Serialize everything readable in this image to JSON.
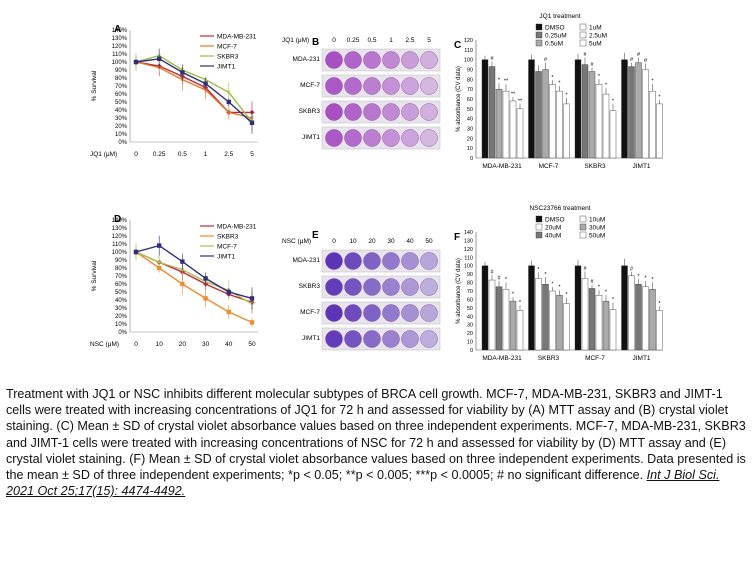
{
  "figure": {
    "panel_letters": [
      "A",
      "B",
      "C",
      "D",
      "E",
      "F"
    ],
    "jq1_xlabel": "JQ1 (μM)",
    "nsc_xlabel": "NSC (μM)",
    "jq1_plate_label": "JQ1 (μM)",
    "nsc_plate_label": "NSC (μM)",
    "jq1_conc": [
      "0",
      "0.25",
      "0.5",
      "1",
      "2.5",
      "5"
    ],
    "nsc_conc": [
      "0",
      "10",
      "20",
      "30",
      "40",
      "50"
    ],
    "plate_rows_b": [
      "MDA-231",
      "MCF-7",
      "SKBR3",
      "JIMT1"
    ],
    "plate_rows_e": [
      "MDA-231",
      "SKBR3",
      "MCF-7",
      "JIMT1"
    ],
    "colors": {
      "mda": "#c0283b",
      "mcf": "#e07b28",
      "skbr": "#9abf3a",
      "jimt": "#2f2e7a",
      "skbr_d": "#f08c2c",
      "mcf_d": "#a9c24d",
      "violet": "#a84fc4",
      "violet_e": "#5b34b8"
    }
  },
  "chart_data": [
    {
      "type": "line",
      "panel": "A",
      "ylabel": "% Survival",
      "xlabel": "JQ1 (μM)",
      "categories": [
        "0",
        "0.25",
        "0.5",
        "1",
        "2.5",
        "5"
      ],
      "yticks": [
        "0%",
        "10%",
        "20%",
        "30%",
        "40%",
        "50%",
        "60%",
        "70%",
        "80%",
        "90%",
        "100%",
        "110%",
        "120%",
        "130%",
        "140%"
      ],
      "ylim": [
        0,
        140
      ],
      "series": [
        {
          "name": "MDA-MB-231",
          "values": [
            100,
            95,
            82,
            68,
            37,
            37
          ]
        },
        {
          "name": "MCF-7",
          "values": [
            100,
            93,
            78,
            65,
            37,
            30
          ]
        },
        {
          "name": "SKBR3",
          "values": [
            100,
            108,
            90,
            78,
            62,
            25
          ]
        },
        {
          "name": "JIMT1",
          "values": [
            100,
            104,
            87,
            73,
            50,
            24
          ]
        }
      ]
    },
    {
      "type": "line",
      "panel": "D",
      "ylabel": "% Survival",
      "xlabel": "NSC (μM)",
      "categories": [
        "0",
        "10",
        "20",
        "30",
        "40",
        "50"
      ],
      "yticks": [
        "0%",
        "10%",
        "20%",
        "30%",
        "40%",
        "50%",
        "60%",
        "70%",
        "80%",
        "90%",
        "100%",
        "110%",
        "120%",
        "130%",
        "140%"
      ],
      "ylim": [
        0,
        140
      ],
      "series": [
        {
          "name": "MDA-MB-231",
          "values": [
            100,
            87,
            75,
            60,
            47,
            37
          ]
        },
        {
          "name": "SKBR3",
          "values": [
            100,
            80,
            60,
            42,
            25,
            12
          ]
        },
        {
          "name": "MCF-7",
          "values": [
            100,
            87,
            78,
            63,
            52,
            35
          ]
        },
        {
          "name": "JIMT1",
          "values": [
            100,
            108,
            88,
            67,
            50,
            42
          ]
        }
      ]
    },
    {
      "type": "bar",
      "panel": "C",
      "title": "JQ1 treatment",
      "ylabel": "% absorbance (CV data)",
      "categories": [
        "MDA-MB-231",
        "MCF-7",
        "SKBR3",
        "JIMT1"
      ],
      "yticks": [
        "0",
        "10",
        "20",
        "30",
        "40",
        "50",
        "60",
        "70",
        "80",
        "90",
        "100",
        "110",
        "120"
      ],
      "ylim": [
        0,
        120
      ],
      "legend": [
        "DMSO",
        "0.25uM",
        "0.5uM",
        "1uM",
        "2.5uM",
        "5uM"
      ],
      "series": [
        {
          "name": "DMSO",
          "values": [
            100,
            100,
            100,
            100
          ]
        },
        {
          "name": "0.25uM",
          "values": [
            93,
            88,
            95,
            93
          ]
        },
        {
          "name": "0.5uM",
          "values": [
            70,
            90,
            88,
            97
          ]
        },
        {
          "name": "1uM",
          "values": [
            68,
            75,
            75,
            90
          ]
        },
        {
          "name": "2.5uM",
          "values": [
            58,
            68,
            65,
            68
          ]
        },
        {
          "name": "5uM",
          "values": [
            50,
            55,
            48,
            55
          ]
        }
      ],
      "annotations": [
        [
          "",
          "#",
          "*",
          "**",
          "**",
          "**"
        ],
        [
          "",
          "",
          "#",
          "*",
          "*",
          "*"
        ],
        [
          "",
          "#",
          "#",
          "*",
          "*",
          "*"
        ],
        [
          "",
          "#",
          "#",
          "#",
          "*",
          "*"
        ]
      ]
    },
    {
      "type": "bar",
      "panel": "F",
      "title": "NSC23766 treatment",
      "ylabel": "% absorbance (CV data)",
      "categories": [
        "MDA-MB-231",
        "SKBR3",
        "MCF-7",
        "JIMT1"
      ],
      "yticks": [
        "0",
        "10",
        "20",
        "30",
        "40",
        "50",
        "60",
        "70",
        "80",
        "90",
        "100",
        "110",
        "120",
        "130",
        "140"
      ],
      "ylim": [
        0,
        140
      ],
      "legend": [
        "DMSO",
        "20uM",
        "40uM",
        "10uM",
        "30uM",
        "50uM"
      ],
      "series": [
        {
          "name": "DMSO",
          "values": [
            100,
            100,
            100,
            100
          ]
        },
        {
          "name": "10uM",
          "values": [
            83,
            85,
            85,
            88
          ]
        },
        {
          "name": "20uM",
          "values": [
            75,
            78,
            73,
            78
          ]
        },
        {
          "name": "30uM",
          "values": [
            72,
            70,
            65,
            75
          ]
        },
        {
          "name": "40uM",
          "values": [
            58,
            65,
            58,
            72
          ]
        },
        {
          "name": "50uM",
          "values": [
            47,
            55,
            48,
            47
          ]
        }
      ],
      "annotations": [
        [
          "",
          "#",
          "#",
          "*",
          "*",
          "*"
        ],
        [
          "",
          "*",
          "*",
          "*",
          "*",
          "*"
        ],
        [
          "",
          "#",
          "#",
          "*",
          "*",
          "*"
        ],
        [
          "",
          "#",
          "*",
          "*",
          "*",
          "*"
        ]
      ]
    }
  ],
  "caption": {
    "text": "Treatment with JQ1 or NSC inhibits different molecular subtypes of BRCA cell growth. MCF-7, MDA-MB-231, SKBR3 and JIMT-1 cells were treated with increasing concentrations of JQ1 for 72 h and assessed for viability by (A) MTT assay and (B) crystal violet staining. (C) Mean ± SD of crystal violet absorbance values based on three independent experiments. MCF-7, MDA-MB-231, SKBR3 and JIMT-1 cells were treated with increasing concentrations of NSC for 72 h and assessed for viability by (D) MTT assay and (E) crystal violet staining. (F) Mean ± SD of crystal violet absorbance values based on three independent experiments. Data presented is the mean ± SD of three independent experiments; *p < 0.05; **p < 0.005; ***p < 0.0005; # no significant difference. ",
    "citation": "Int J Biol Sci. 2021 Oct 25;17(15): 4474-4492."
  }
}
